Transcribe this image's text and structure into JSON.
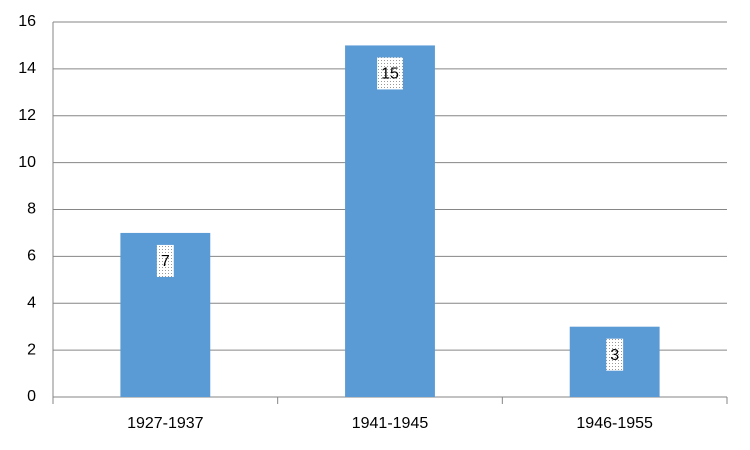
{
  "chart_data": {
    "type": "bar",
    "categories": [
      "1927-1937",
      "1941-1945",
      "1946-1955"
    ],
    "values": [
      7,
      15,
      3
    ],
    "color": "#5b9bd5",
    "ylim": [
      0,
      16
    ],
    "yticks": [
      0,
      2,
      4,
      6,
      8,
      10,
      12,
      14,
      16
    ],
    "grid": true
  }
}
